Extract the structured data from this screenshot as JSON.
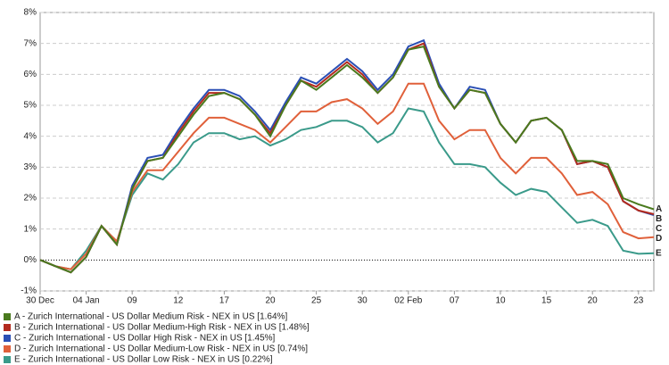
{
  "chart_data": {
    "type": "line",
    "categories": [
      "30 Dec",
      null,
      null,
      "04 Jan",
      null,
      null,
      "09",
      null,
      null,
      "12",
      null,
      null,
      "17",
      null,
      null,
      "20",
      null,
      null,
      "25",
      null,
      null,
      "30",
      null,
      null,
      "02 Feb",
      null,
      null,
      "07",
      null,
      null,
      "10",
      null,
      null,
      "15",
      null,
      null,
      "20",
      null,
      null,
      "23",
      null
    ],
    "ylim": [
      -1,
      8
    ],
    "yticks": [
      {
        "value": -1,
        "label": "-1%"
      },
      {
        "value": 0,
        "label": "0%"
      },
      {
        "value": 1,
        "label": "1%"
      },
      {
        "value": 2,
        "label": "2%"
      },
      {
        "value": 3,
        "label": "3%"
      },
      {
        "value": 4,
        "label": "4%"
      },
      {
        "value": 5,
        "label": "5%"
      },
      {
        "value": 6,
        "label": "6%"
      },
      {
        "value": 7,
        "label": "7%"
      },
      {
        "value": 8,
        "label": "8%"
      }
    ],
    "grid": true,
    "series": [
      {
        "name": "A - Zurich International - US Dollar Medium Risk - NEX in US [1.64%]",
        "end_label": "A",
        "color": "#4a7a1e",
        "values": [
          0,
          -0.2,
          -0.4,
          0.1,
          1.1,
          0.5,
          2.3,
          3.2,
          3.3,
          4.0,
          4.7,
          5.3,
          5.4,
          5.2,
          4.7,
          4.0,
          5.0,
          5.8,
          5.5,
          5.9,
          6.3,
          5.9,
          5.4,
          5.9,
          6.8,
          6.9,
          5.6,
          4.9,
          5.5,
          5.4,
          4.4,
          3.8,
          4.5,
          4.6,
          4.2,
          3.2,
          3.2,
          3.1,
          2.0,
          1.8,
          1.64
        ]
      },
      {
        "name": "B - Zurich International - US Dollar Medium-High Risk - NEX in US [1.48%]",
        "end_label": "B",
        "color": "#b22a1e",
        "values": [
          0,
          -0.2,
          -0.4,
          0.1,
          1.1,
          0.5,
          2.3,
          3.2,
          3.3,
          4.1,
          4.8,
          5.4,
          5.4,
          5.2,
          4.7,
          4.1,
          5.0,
          5.8,
          5.6,
          6.0,
          6.4,
          6.0,
          5.4,
          5.9,
          6.8,
          7.0,
          5.6,
          4.9,
          5.5,
          5.4,
          4.4,
          3.8,
          4.5,
          4.6,
          4.2,
          3.1,
          3.2,
          3.0,
          1.9,
          1.6,
          1.48
        ]
      },
      {
        "name": "C - Zurich International - US Dollar High Risk - NEX in US [1.45%]",
        "end_label": "C",
        "color": "#2a4fb5",
        "values": [
          0,
          -0.2,
          -0.4,
          0.1,
          1.1,
          0.5,
          2.4,
          3.3,
          3.4,
          4.2,
          4.9,
          5.5,
          5.5,
          5.3,
          4.8,
          4.2,
          5.1,
          5.9,
          5.7,
          6.1,
          6.5,
          6.1,
          5.5,
          6.0,
          6.9,
          7.1,
          5.7,
          4.9,
          5.6,
          5.5,
          4.4,
          3.8,
          4.5,
          4.6,
          4.2,
          3.1,
          3.2,
          3.0,
          1.9,
          1.6,
          1.45
        ]
      },
      {
        "name": "D - Zurich International - US Dollar Medium-Low Risk - NEX in US [0.74%]",
        "end_label": "D",
        "color": "#e0603a",
        "values": [
          0,
          -0.2,
          -0.3,
          0.2,
          1.1,
          0.6,
          2.2,
          2.9,
          2.9,
          3.5,
          4.1,
          4.6,
          4.6,
          4.4,
          4.2,
          3.8,
          4.3,
          4.8,
          4.8,
          5.1,
          5.2,
          4.9,
          4.4,
          4.8,
          5.7,
          5.7,
          4.5,
          3.9,
          4.2,
          4.2,
          3.3,
          2.8,
          3.3,
          3.3,
          2.8,
          2.1,
          2.2,
          1.8,
          0.9,
          0.7,
          0.74
        ]
      },
      {
        "name": "E - Zurich International - US Dollar Low Risk - NEX in US [0.22%]",
        "end_label": "E",
        "color": "#3a9a8a",
        "values": [
          0,
          -0.2,
          -0.3,
          0.3,
          1.1,
          0.6,
          2.1,
          2.8,
          2.6,
          3.1,
          3.8,
          4.1,
          4.1,
          3.9,
          4.0,
          3.7,
          3.9,
          4.2,
          4.3,
          4.5,
          4.5,
          4.3,
          3.8,
          4.1,
          4.9,
          4.8,
          3.8,
          3.1,
          3.1,
          3.0,
          2.5,
          2.1,
          2.3,
          2.2,
          1.7,
          1.2,
          1.3,
          1.1,
          0.3,
          0.2,
          0.22
        ]
      }
    ]
  }
}
